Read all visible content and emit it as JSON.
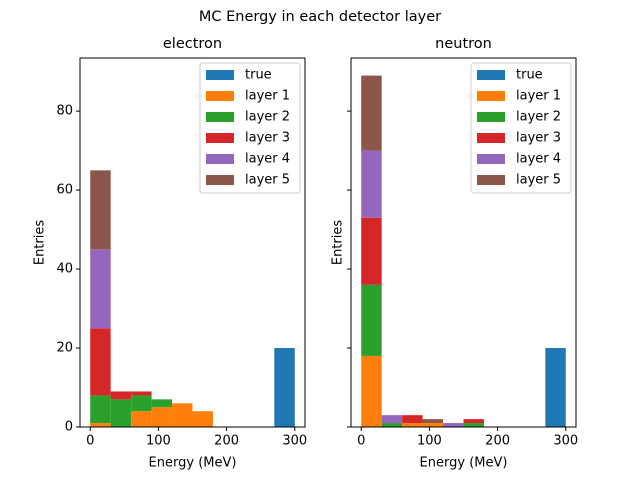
{
  "title": "MC Energy in each detector layer",
  "chart_data": [
    {
      "type": "histogram",
      "title": "electron",
      "xlabel": "Energy (MeV)",
      "ylabel": "Entries",
      "bins": [
        0,
        30,
        60,
        90,
        120,
        150,
        180,
        210,
        240,
        270,
        300
      ],
      "xlim": [
        -15,
        315
      ],
      "xticks": [
        0,
        100,
        200,
        300
      ],
      "ylim": [
        0,
        93.45
      ],
      "yticks": [
        0,
        20,
        40,
        60,
        80
      ],
      "show_ytick_labels": true,
      "stacked": true,
      "legend": "upper right",
      "series": [
        {
          "name": "true",
          "color": "#1f77b4",
          "values": [
            0,
            0,
            0,
            0,
            0,
            0,
            0,
            0,
            0,
            20
          ]
        },
        {
          "name": "layer 1",
          "color": "#ff7f0e",
          "values": [
            1,
            0,
            4,
            5,
            6,
            4,
            0,
            0,
            0,
            0
          ]
        },
        {
          "name": "layer 2",
          "color": "#2ca02c",
          "values": [
            7,
            7,
            4,
            2,
            0,
            0,
            0,
            0,
            0,
            0
          ]
        },
        {
          "name": "layer 3",
          "color": "#d62728",
          "values": [
            17,
            2,
            1,
            0,
            0,
            0,
            0,
            0,
            0,
            0
          ]
        },
        {
          "name": "layer 4",
          "color": "#9467bd",
          "values": [
            20,
            0,
            0,
            0,
            0,
            0,
            0,
            0,
            0,
            0
          ]
        },
        {
          "name": "layer 5",
          "color": "#8c564b",
          "values": [
            20,
            0,
            0,
            0,
            0,
            0,
            0,
            0,
            0,
            0
          ]
        }
      ]
    },
    {
      "type": "histogram",
      "title": "neutron",
      "xlabel": "Energy (MeV)",
      "ylabel": "Entries",
      "bins": [
        0,
        30,
        60,
        90,
        120,
        150,
        180,
        210,
        240,
        270,
        300
      ],
      "xlim": [
        -15,
        315
      ],
      "xticks": [
        0,
        100,
        200,
        300
      ],
      "ylim": [
        0,
        93.45
      ],
      "yticks": [
        0,
        20,
        40,
        60,
        80
      ],
      "show_ytick_labels": false,
      "stacked": true,
      "legend": "upper right",
      "series": [
        {
          "name": "true",
          "color": "#1f77b4",
          "values": [
            0,
            0,
            0,
            0,
            0,
            0,
            0,
            0,
            0,
            20
          ]
        },
        {
          "name": "layer 1",
          "color": "#ff7f0e",
          "values": [
            18,
            0,
            1,
            1,
            0,
            0,
            0,
            0,
            0,
            0
          ]
        },
        {
          "name": "layer 2",
          "color": "#2ca02c",
          "values": [
            18,
            1,
            0,
            0,
            0,
            1,
            0,
            0,
            0,
            0
          ]
        },
        {
          "name": "layer 3",
          "color": "#d62728",
          "values": [
            17,
            0,
            2,
            0,
            0,
            1,
            0,
            0,
            0,
            0
          ]
        },
        {
          "name": "layer 4",
          "color": "#9467bd",
          "values": [
            17,
            2,
            0,
            0,
            1,
            0,
            0,
            0,
            0,
            0
          ]
        },
        {
          "name": "layer 5",
          "color": "#8c564b",
          "values": [
            19,
            0,
            0,
            1,
            0,
            0,
            0,
            0,
            0,
            0
          ]
        }
      ]
    }
  ]
}
